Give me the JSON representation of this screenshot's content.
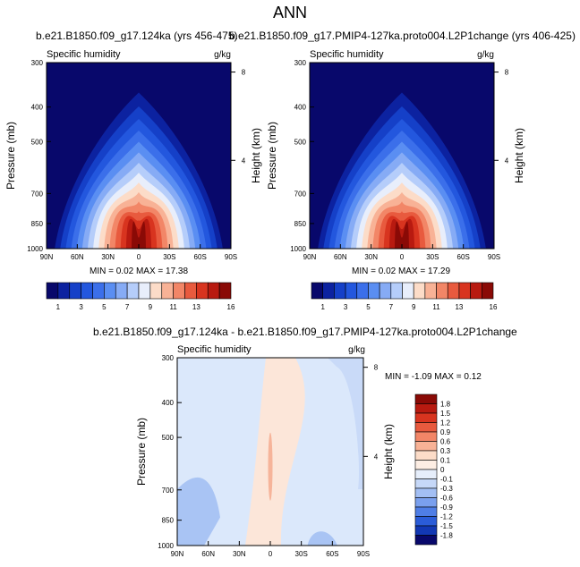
{
  "page_title": "ANN",
  "chart_data": [
    {
      "type": "heatmap",
      "title": "b.e21.B1850.f09_g17.124ka (yrs 456-475)",
      "left_label": "Specific humidity",
      "right_label": "g/kg",
      "ylabel": "Pressure (mb)",
      "ylabel_right": "Height (km)",
      "x_ticks": [
        "90N",
        "60N",
        "30N",
        "0",
        "30S",
        "60S",
        "90S"
      ],
      "xlim": [
        90,
        -90
      ],
      "y_ticks": [
        300,
        400,
        500,
        700,
        850,
        1000
      ],
      "ylim": [
        1000,
        300
      ],
      "y_scale": "log",
      "height_ticks": [
        4,
        8
      ],
      "min_max_text": "MIN =  0.02  MAX = 17.38",
      "min": 0.02,
      "max": 17.38,
      "colorbar": {
        "labels": [
          "1",
          "3",
          "5",
          "7",
          "9",
          "11",
          "13",
          "16"
        ],
        "levels": [
          1,
          2,
          3,
          4,
          5,
          6,
          7,
          8,
          9,
          10,
          11,
          12,
          13,
          14,
          16
        ],
        "colors": [
          "#08086b",
          "#0c22a0",
          "#1540c8",
          "#2357de",
          "#3b6fea",
          "#5a8ef2",
          "#86abf5",
          "#b5cdfa",
          "#e8eefb",
          "#fcdcc8",
          "#f8b296",
          "#f28667",
          "#e85a3e",
          "#d8341f",
          "#b81a10",
          "#8a0a06"
        ]
      }
    },
    {
      "type": "heatmap",
      "title": "b.e21.B1850.f09_g17.PMIP4-127ka.proto004.L2P1change (yrs 406-425)",
      "left_label": "Specific humidity",
      "right_label": "g/kg",
      "ylabel": "Pressure (mb)",
      "ylabel_right": "Height (km)",
      "x_ticks": [
        "90N",
        "60N",
        "30N",
        "0",
        "30S",
        "60S",
        "90S"
      ],
      "xlim": [
        90,
        -90
      ],
      "y_ticks": [
        300,
        400,
        500,
        700,
        850,
        1000
      ],
      "ylim": [
        1000,
        300
      ],
      "y_scale": "log",
      "height_ticks": [
        4,
        8
      ],
      "min_max_text": "MIN =  0.02  MAX = 17.29",
      "min": 0.02,
      "max": 17.29,
      "colorbar": {
        "labels": [
          "1",
          "3",
          "5",
          "7",
          "9",
          "11",
          "13",
          "16"
        ],
        "levels": [
          1,
          2,
          3,
          4,
          5,
          6,
          7,
          8,
          9,
          10,
          11,
          12,
          13,
          14,
          16
        ],
        "colors": [
          "#08086b",
          "#0c22a0",
          "#1540c8",
          "#2357de",
          "#3b6fea",
          "#5a8ef2",
          "#86abf5",
          "#b5cdfa",
          "#e8eefb",
          "#fcdcc8",
          "#f8b296",
          "#f28667",
          "#e85a3e",
          "#d8341f",
          "#b81a10",
          "#8a0a06"
        ]
      }
    },
    {
      "type": "heatmap",
      "title": "b.e21.B1850.f09_g17.124ka - b.e21.B1850.f09_g17.PMIP4-127ka.proto004.L2P1change",
      "left_label": "Specific humidity",
      "right_label": "g/kg",
      "ylabel": "Pressure (mb)",
      "ylabel_right": "Height (km)",
      "x_ticks": [
        "90N",
        "60N",
        "30N",
        "0",
        "30S",
        "60S",
        "90S"
      ],
      "xlim": [
        90,
        -90
      ],
      "y_ticks": [
        300,
        400,
        500,
        700,
        850,
        1000
      ],
      "ylim": [
        1000,
        300
      ],
      "y_scale": "log",
      "height_ticks": [
        4,
        8
      ],
      "min_max_text": "MIN = -1.09  MAX =  0.12",
      "min": -1.09,
      "max": 0.12,
      "colorbar": {
        "labels": [
          "1.8",
          "1.5",
          "1.2",
          "0.9",
          "0.6",
          "0.3",
          "0.1",
          "0",
          "-0.1",
          "-0.3",
          "-0.6",
          "-0.9",
          "-1.2",
          "-1.5",
          "-1.8"
        ],
        "levels": [
          1.8,
          1.5,
          1.2,
          0.9,
          0.6,
          0.3,
          0.1,
          0,
          -0.1,
          -0.3,
          -0.6,
          -0.9,
          -1.2,
          -1.5,
          -1.8
        ],
        "colors": [
          "#8a0a06",
          "#b81a10",
          "#d8341f",
          "#e85a3e",
          "#f28667",
          "#f8b296",
          "#fcdcc8",
          "#fdeee4",
          "#e6eefb",
          "#c6d8f8",
          "#a3bff4",
          "#7aa0ee",
          "#4f7ee6",
          "#2a5cd8",
          "#1238b4",
          "#08086b"
        ]
      }
    }
  ]
}
